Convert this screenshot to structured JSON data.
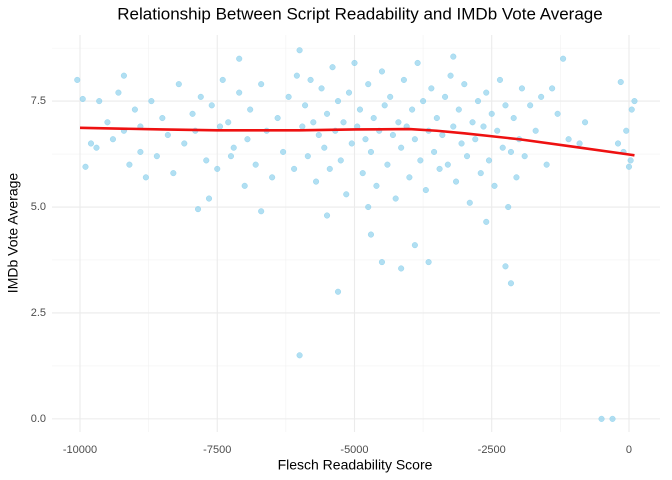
{
  "chart_data": {
    "type": "scatter",
    "title": "Relationship Between Script Readability and IMDb Vote Average",
    "x_label": "Flesch Readability Score",
    "y_label": "IMDb Vote Average",
    "color": "#87ceeb",
    "x": [
      -10050,
      -9950,
      -9900,
      -6000,
      -5300,
      -4500,
      -4150,
      -3650,
      -2150,
      -2250,
      -500,
      -300,
      -150,
      100,
      0,
      -3200,
      -6000,
      -7100,
      -1200,
      -3900,
      -4700,
      -4750,
      -7850,
      -5500,
      -6700,
      -2600,
      -1400,
      -9800,
      -9700,
      -9650,
      -9500,
      -9400,
      -9300,
      -9200,
      -9100,
      -9000,
      -8900,
      -8800,
      -8700,
      -8600,
      -8500,
      -8400,
      -8300,
      -8200,
      -8100,
      -9200,
      -8900,
      -7950,
      -7900,
      -7800,
      -7700,
      -7600,
      -7500,
      -7450,
      -7400,
      -7300,
      -7200,
      -7100,
      -7000,
      -6950,
      -6900,
      -6800,
      -6700,
      -6600,
      -6500,
      -6400,
      -6300,
      -6200,
      -6100,
      -6050,
      -7650,
      -7250,
      -5950,
      -5900,
      -5850,
      -5800,
      -5750,
      -5700,
      -5650,
      -5600,
      -5550,
      -5500,
      -5450,
      -5400,
      -5350,
      -5300,
      -5250,
      -5200,
      -5150,
      -5100,
      -5050,
      -5000,
      -4950,
      -4900,
      -4850,
      -4800,
      -4750,
      -4700,
      -4650,
      -4600,
      -4550,
      -4500,
      -4450,
      -4400,
      -4350,
      -4300,
      -4250,
      -4200,
      -4150,
      -4100,
      -4050,
      -4000,
      -3950,
      -3900,
      -3850,
      -3800,
      -3750,
      -3700,
      -3650,
      -3600,
      -3550,
      -3500,
      -3450,
      -3400,
      -3350,
      -3300,
      -3250,
      -3200,
      -3150,
      -3100,
      -3050,
      -3000,
      -2950,
      -2900,
      -2850,
      -2800,
      -2750,
      -2700,
      -2650,
      -2600,
      -2550,
      -2500,
      -2450,
      -2400,
      -2350,
      -2300,
      -2250,
      -2200,
      -2150,
      -2100,
      -2050,
      -2000,
      -1950,
      -1900,
      -1800,
      -1700,
      -1600,
      -1500,
      -1300,
      -1100,
      -900,
      -800,
      -100,
      -50,
      50,
      -200,
      30
    ],
    "values": [
      8.0,
      7.55,
      5.95,
      1.5,
      3.0,
      3.7,
      3.55,
      3.7,
      3.2,
      3.6,
      0,
      0,
      7.95,
      7.5,
      5.95,
      8.55,
      8.7,
      8.5,
      8.5,
      4.1,
      4.35,
      5.0,
      4.95,
      4.8,
      4.9,
      4.65,
      7.8,
      6.5,
      6.4,
      7.5,
      7.0,
      6.6,
      7.7,
      6.8,
      6.0,
      7.3,
      6.9,
      5.7,
      7.5,
      6.2,
      7.1,
      6.7,
      5.8,
      7.9,
      6.5,
      8.1,
      6.3,
      7.2,
      6.8,
      7.6,
      6.1,
      7.4,
      5.9,
      6.9,
      8.0,
      7.0,
      6.4,
      7.7,
      5.5,
      6.6,
      7.3,
      6.0,
      7.9,
      6.8,
      5.7,
      7.1,
      6.3,
      7.6,
      5.9,
      8.1,
      5.2,
      6.2,
      6.9,
      7.4,
      6.2,
      8.0,
      7.0,
      5.6,
      6.7,
      7.8,
      6.4,
      7.2,
      5.9,
      8.3,
      6.8,
      7.5,
      6.1,
      7.0,
      5.3,
      7.7,
      6.5,
      8.4,
      6.9,
      7.3,
      5.8,
      6.6,
      7.9,
      6.3,
      7.1,
      5.5,
      6.8,
      8.2,
      7.4,
      6.0,
      7.6,
      6.7,
      5.2,
      7.0,
      6.4,
      8.0,
      6.9,
      5.7,
      7.3,
      6.6,
      8.4,
      6.1,
      7.5,
      5.4,
      6.8,
      7.8,
      6.3,
      7.1,
      5.9,
      6.7,
      7.6,
      6.0,
      8.1,
      6.9,
      5.6,
      7.3,
      6.5,
      7.9,
      6.2,
      5.1,
      7.0,
      6.6,
      7.5,
      5.8,
      6.9,
      7.7,
      6.1,
      7.2,
      5.5,
      6.8,
      8.0,
      6.4,
      7.4,
      5.0,
      6.3,
      7.1,
      5.7,
      6.6,
      7.8,
      6.2,
      7.4,
      6.8,
      7.6,
      6.0,
      7.2,
      6.6,
      6.5,
      7.0,
      6.3,
      6.8,
      7.3,
      6.5,
      6.1
    ],
    "trend": {
      "color": "#ee1111",
      "x": [
        -10000,
        -8500,
        -7500,
        -6000,
        -5000,
        -4000,
        -3500,
        -3000,
        -2500,
        -2000,
        -1000,
        0,
        100
      ],
      "values": [
        6.87,
        6.83,
        6.81,
        6.81,
        6.83,
        6.84,
        6.8,
        6.74,
        6.67,
        6.6,
        6.42,
        6.24,
        6.22
      ]
    },
    "xlim": [
      -10510,
      565
    ],
    "ylim": [
      -0.31,
      9.06
    ],
    "xticks": [
      -10000,
      -7500,
      -5000,
      -2500,
      0
    ],
    "yticks": [
      {
        "value": 0,
        "label": "0.0"
      },
      2.5,
      {
        "value": 5,
        "label": "5.0"
      },
      7.5
    ],
    "x_minor": [
      -8750,
      -6250,
      -3750,
      -1250
    ],
    "y_minor": [
      1.25,
      3.75,
      6.25,
      8.75
    ],
    "grid": true
  }
}
